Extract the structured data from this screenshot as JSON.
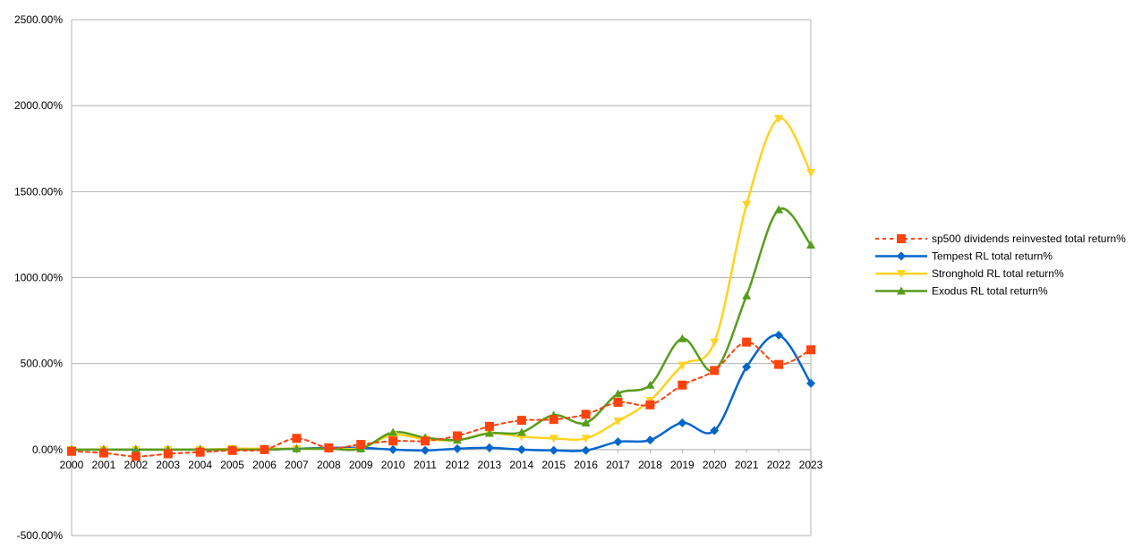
{
  "chart_data": {
    "type": "line",
    "title": "",
    "xlabel": "",
    "ylabel": "",
    "x": [
      "2000",
      "2001",
      "2002",
      "2003",
      "2004",
      "2005",
      "2006",
      "2007",
      "2008",
      "2009",
      "2010",
      "2011",
      "2012",
      "2013",
      "2014",
      "2015",
      "2016",
      "2017",
      "2018",
      "2019",
      "2020",
      "2021",
      "2022",
      "2023"
    ],
    "ylim": [
      -500,
      2500
    ],
    "y_ticks": [
      -500,
      0,
      500,
      1000,
      1500,
      2000,
      2500
    ],
    "y_tick_labels": [
      "-500.00%",
      "0.00%",
      "500.00%",
      "1000.00%",
      "1500.00%",
      "2000.00%",
      "2500.00%"
    ],
    "grid": "horizontal",
    "legend_position": "right",
    "series": [
      {
        "name": "sp500 dividends reinvested total return%",
        "color": "#ff420e",
        "marker": "square",
        "line_style": "dashed",
        "values": [
          -10,
          -20,
          -40,
          -25,
          -15,
          -5,
          0,
          65,
          10,
          30,
          50,
          50,
          80,
          135,
          170,
          175,
          205,
          275,
          260,
          375,
          460,
          625,
          495,
          580
        ]
      },
      {
        "name": "Tempest RL total return%",
        "color": "#0066cc",
        "marker": "diamond",
        "line_style": "solid",
        "values": [
          0,
          0,
          0,
          0,
          0,
          0,
          0,
          5,
          10,
          10,
          0,
          -5,
          5,
          10,
          0,
          -5,
          -5,
          45,
          55,
          155,
          110,
          480,
          665,
          385
        ]
      },
      {
        "name": "Stronghold RL total return%",
        "color": "#ffd320",
        "marker": "triangle-down",
        "line_style": "solid",
        "values": [
          0,
          0,
          0,
          0,
          0,
          5,
          5,
          5,
          5,
          10,
          85,
          60,
          55,
          95,
          75,
          65,
          65,
          165,
          285,
          490,
          625,
          1425,
          1925,
          1610
        ]
      },
      {
        "name": "Exodus RL total return%",
        "color": "#579d1c",
        "marker": "triangle-up",
        "line_style": "solid",
        "values": [
          0,
          0,
          0,
          0,
          0,
          0,
          0,
          5,
          5,
          5,
          100,
          70,
          55,
          95,
          100,
          200,
          155,
          325,
          375,
          645,
          460,
          895,
          1395,
          1190
        ]
      }
    ]
  }
}
